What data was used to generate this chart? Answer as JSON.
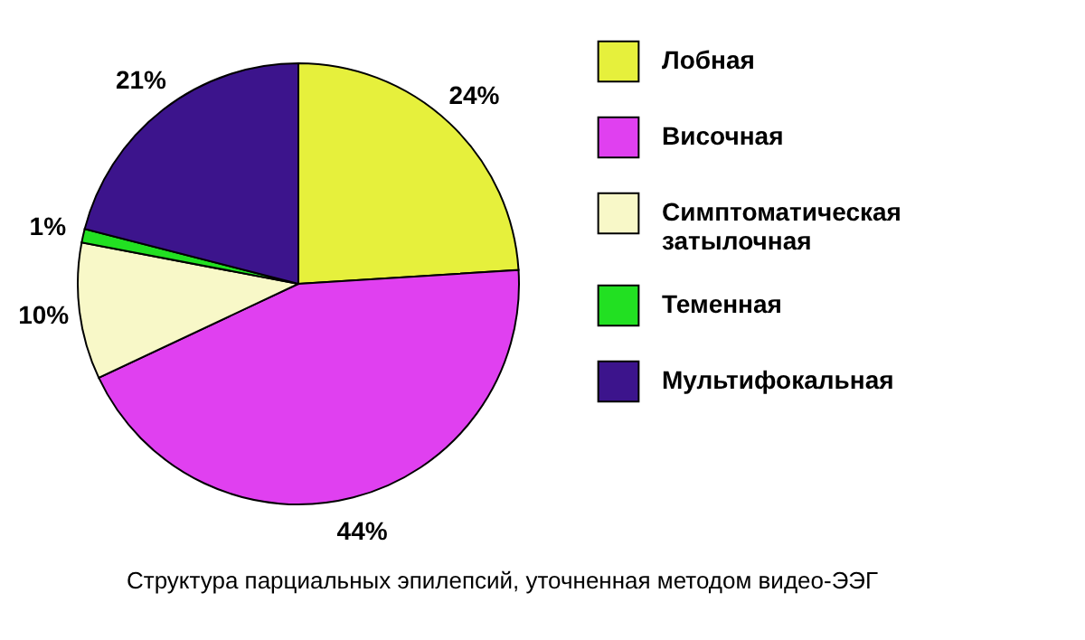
{
  "chart_data": {
    "type": "pie",
    "title": "Структура парциальных эпилепсий, уточненная методом видео-ЭЭГ",
    "categories": [
      "Лобная",
      "Височная",
      "Симптоматическая затылочная",
      "Теменная",
      "Мультифокальная"
    ],
    "values": [
      24,
      44,
      10,
      1,
      21
    ],
    "colors": [
      "#e6f03c",
      "#e040f0",
      "#f8f8c8",
      "#22e022",
      "#3c148c"
    ],
    "value_labels": [
      "24%",
      "44%",
      "10%",
      "1%",
      "21%"
    ],
    "legend": "right"
  }
}
